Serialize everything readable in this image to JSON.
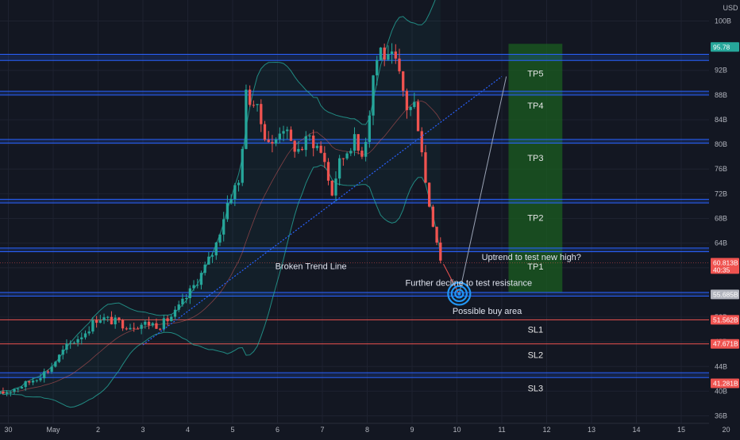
{
  "chart_data": {
    "type": "candlestick",
    "currency": "USD",
    "x_ticks": [
      "30",
      "May",
      "2",
      "3",
      "4",
      "5",
      "6",
      "7",
      "8",
      "9",
      "10",
      "11",
      "12",
      "13",
      "14",
      "15",
      "20"
    ],
    "x_tick_days": [
      -1,
      0,
      1,
      2,
      3,
      4,
      5,
      6,
      7,
      8,
      9,
      10,
      11,
      12,
      13,
      14,
      15
    ],
    "y_ticks": [
      36,
      40,
      44,
      48,
      52,
      56,
      60,
      64,
      68,
      72,
      76,
      80,
      84,
      88,
      92,
      100
    ],
    "y_tick_labels": [
      "36B",
      "40B",
      "44B",
      "48B",
      "52B",
      "56B",
      "60B",
      "64B",
      "68B",
      "72B",
      "76B",
      "80B",
      "84B",
      "88B",
      "92B",
      "100B"
    ],
    "ylim": [
      33.5,
      102.5
    ],
    "grid": true,
    "price_path": [
      [
        -1.2,
        39.5
      ],
      [
        -0.6,
        41.2
      ],
      [
        -0.1,
        43.5
      ],
      [
        0.3,
        47.2
      ],
      [
        0.7,
        49.5
      ],
      [
        1.0,
        52.0
      ],
      [
        1.3,
        51.4
      ],
      [
        1.7,
        50.6
      ],
      [
        2.1,
        51.0
      ],
      [
        2.4,
        50.7
      ],
      [
        2.7,
        52.5
      ],
      [
        3.0,
        55.5
      ],
      [
        3.3,
        59.0
      ],
      [
        3.6,
        63.0
      ],
      [
        3.9,
        71.0
      ],
      [
        4.05,
        73.0
      ],
      [
        4.15,
        73.8
      ],
      [
        4.3,
        88.0
      ],
      [
        4.5,
        86.5
      ],
      [
        4.7,
        82.0
      ],
      [
        4.9,
        79.5
      ],
      [
        5.1,
        83.5
      ],
      [
        5.3,
        80.0
      ],
      [
        5.5,
        79.0
      ],
      [
        5.7,
        81.2
      ],
      [
        5.9,
        79.5
      ],
      [
        6.05,
        77.5
      ],
      [
        6.2,
        71.5
      ],
      [
        6.35,
        76.5
      ],
      [
        6.55,
        79.0
      ],
      [
        6.7,
        81.0
      ],
      [
        6.85,
        78.0
      ],
      [
        7.0,
        82.0
      ],
      [
        7.15,
        92.5
      ],
      [
        7.3,
        95.5
      ],
      [
        7.45,
        93.5
      ],
      [
        7.6,
        94.0
      ],
      [
        7.75,
        90.0
      ],
      [
        7.9,
        85.5
      ],
      [
        8.05,
        86.5
      ],
      [
        8.2,
        80.5
      ],
      [
        8.32,
        72.5
      ],
      [
        8.45,
        68.0
      ],
      [
        8.55,
        64.5
      ],
      [
        8.65,
        61.0
      ]
    ],
    "current_price": 60.813,
    "price_tags": [
      {
        "value": 95.78,
        "label": "95.78",
        "color": "#26a69a"
      },
      {
        "value": 60.813,
        "label": "60.813B",
        "sublabel": "40:35",
        "color": "#ef5350"
      },
      {
        "value": 55.685,
        "label": "55.685B",
        "color": "#b2b5be"
      },
      {
        "value": 51.562,
        "label": "51.562B",
        "color": "#ef5350"
      },
      {
        "value": 47.671,
        "label": "47.671B",
        "color": "#ef5350"
      },
      {
        "value": 41.281,
        "label": "41.281B",
        "color": "#ef5350"
      }
    ],
    "resistance_lines": [
      {
        "y1": 93.6,
        "y2": 94.6,
        "color": "#2962ff"
      },
      {
        "y1": 88.0,
        "y2": 88.6,
        "color": "#2962ff"
      },
      {
        "y1": 80.2,
        "y2": 80.8,
        "color": "#2962ff"
      },
      {
        "y1": 70.5,
        "y2": 71.1,
        "color": "#2962ff"
      },
      {
        "y1": 62.6,
        "y2": 63.2,
        "color": "#2962ff"
      },
      {
        "y1": 55.4,
        "y2": 56.0,
        "color": "#2962ff"
      },
      {
        "y1": 42.2,
        "y2": 43.0,
        "color": "#2962ff"
      }
    ],
    "red_lines": [
      51.562,
      47.671
    ],
    "trend_line": {
      "x1": 2.0,
      "y1": 47.5,
      "x2": 10.0,
      "y2": 91.0
    },
    "zones": [
      {
        "name": "TP5",
        "value": 91.5
      },
      {
        "name": "TP4",
        "value": 86.3
      },
      {
        "name": "TP3",
        "value": 77.8
      },
      {
        "name": "TP2",
        "value": 68.1
      },
      {
        "name": "TP1",
        "value": 60.2
      },
      {
        "name": "SL1",
        "value": 50.0
      },
      {
        "name": "SL2",
        "value": 45.9
      },
      {
        "name": "SL3",
        "value": 40.5
      }
    ],
    "profit_zone": {
      "x1": 10.15,
      "x2": 11.35,
      "y1": 56.0,
      "y2": 96.3,
      "color": "#1b5e20"
    },
    "loss_zone": {
      "x1": 10.15,
      "x2": 11.35,
      "y1": 41.8,
      "y2": 56.0,
      "color": "#7f1d24"
    },
    "projection": [
      [
        8.7,
        60.6
      ],
      [
        9.05,
        55.7
      ],
      [
        10.1,
        91.0
      ]
    ],
    "buy_target": {
      "x": 9.05,
      "y": 55.8
    },
    "annotations": [
      {
        "text": "Broken Trend Line",
        "x": 4.95,
        "y": 60.3
      },
      {
        "text": "Further decline to test resistance",
        "x": 7.85,
        "y": 57.6
      },
      {
        "text": "Possible buy area",
        "x": 8.9,
        "y": 53.0
      },
      {
        "text": "Uptrend to test new high?",
        "x": 9.55,
        "y": 61.8
      }
    ]
  }
}
